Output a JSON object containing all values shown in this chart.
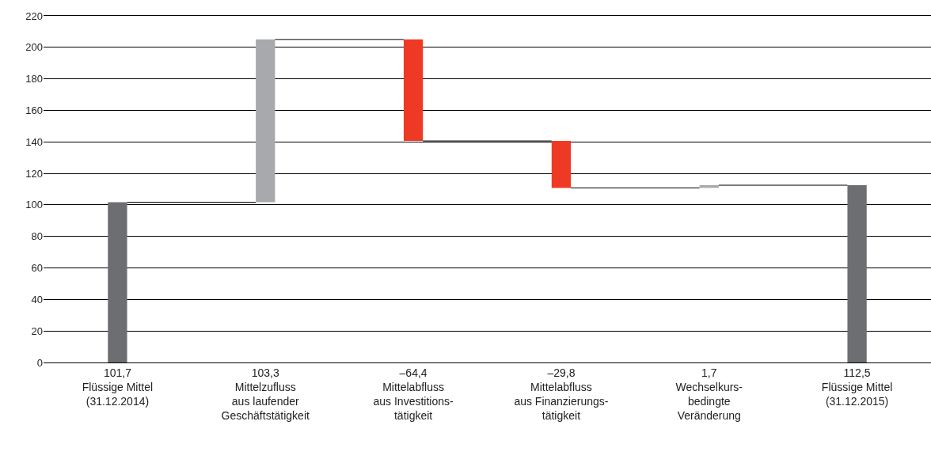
{
  "chart_data": {
    "type": "bar",
    "categories": [
      "Flüssige Mittel\n(31.12.2014)",
      "Mittelzufluss\naus laufender\nGeschäftstätigkeit",
      "Mittelabfluss\naus Investitions-\ntätigkeit",
      "Mittelabfluss\naus Finanzierungs-\ntätigkeit",
      "Wechselkurs-\nbedingte\nVeränderung",
      "Flüssige Mittel\n(31.12.2015)"
    ],
    "values": [
      101.7,
      103.3,
      -64.4,
      -29.8,
      1.7,
      112.5
    ],
    "base": [
      0,
      101.7,
      205,
      140.6,
      110.8,
      0
    ],
    "colors": [
      "#6d6e71",
      "#a7a9ac",
      "#ee3a24",
      "#ee3a24",
      "#a7a9ac",
      "#6d6e71"
    ],
    "value_labels": [
      "101,7",
      "103,3",
      "–64,4",
      "–29,8",
      "1,7",
      "112,5"
    ],
    "ylim": [
      0,
      220
    ],
    "yticks": [
      0,
      20,
      40,
      60,
      80,
      100,
      120,
      140,
      160,
      180,
      200,
      220
    ],
    "grid": "y"
  }
}
